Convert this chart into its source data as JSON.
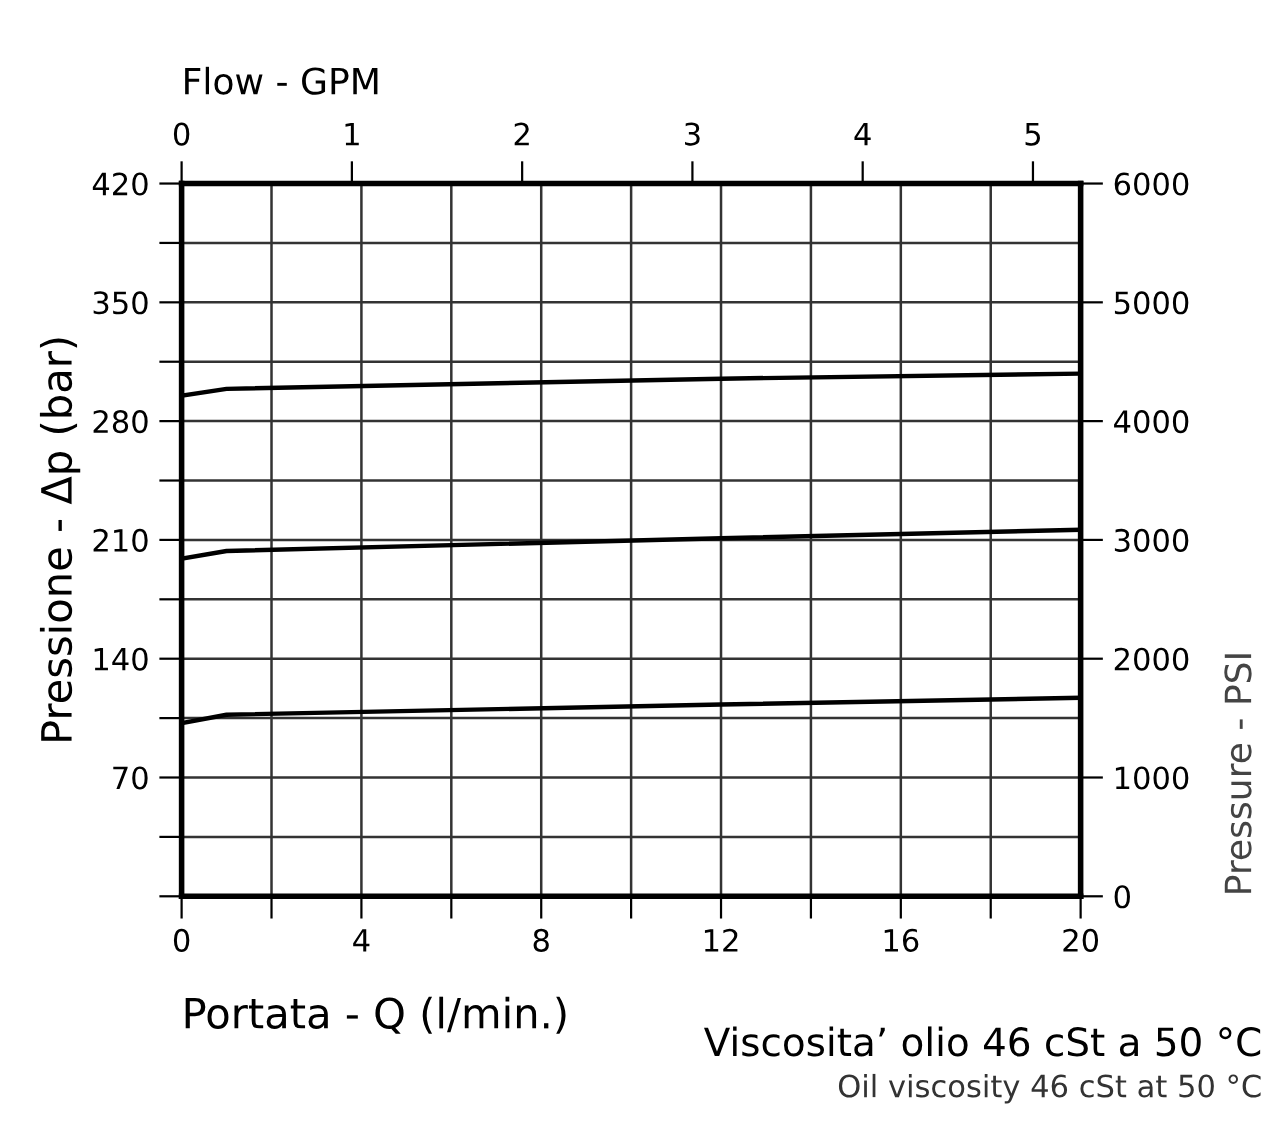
{
  "chart_data": {
    "type": "line",
    "xlabel": "Portata - Q (l/min.)",
    "ylabel": "Pressione - Δp (bar)",
    "y2label": "Pressure - PSI",
    "x2label": "Flow - GPM",
    "x": [
      0,
      1,
      12,
      20
    ],
    "series": [
      {
        "color": "#000000",
        "values": [
          102,
          107,
          113,
          117
        ]
      },
      {
        "color": "#000000",
        "values": [
          199,
          203.5,
          211,
          216
        ]
      },
      {
        "color": "#000000",
        "values": [
          295,
          299,
          305,
          308
        ]
      }
    ],
    "xlim": [
      0,
      20
    ],
    "xticks": [
      0,
      {
        "value": 2,
        "label": null
      },
      4,
      {
        "value": 6,
        "label": null
      },
      8,
      {
        "value": 10,
        "label": null
      },
      12,
      {
        "value": 14,
        "label": null
      },
      16,
      {
        "value": 18,
        "label": null
      },
      20
    ],
    "ylim": [
      0,
      420
    ],
    "yticks": [
      {
        "value": 0,
        "label": null
      },
      {
        "value": 35,
        "label": null
      },
      70,
      {
        "value": 105,
        "label": null
      },
      140,
      {
        "value": 175,
        "label": null
      },
      210,
      {
        "value": 245,
        "label": null
      },
      280,
      {
        "value": 315,
        "label": null
      },
      350,
      {
        "value": 385,
        "label": null
      },
      420
    ],
    "y2lim": [
      0,
      6000
    ],
    "y2ticks": [
      0,
      1000,
      2000,
      3000,
      4000,
      5000,
      6000
    ],
    "x2lim": [
      0,
      5.28
    ],
    "x2ticks": [
      0,
      1,
      2,
      3,
      4,
      5
    ],
    "grid": true,
    "marker": "none",
    "line_style": "solid",
    "legend": false,
    "annotations": [
      "Viscosita’ olio 46 cSt a 50 °C",
      "Oil viscosity 46 cSt at 50 °C"
    ]
  }
}
